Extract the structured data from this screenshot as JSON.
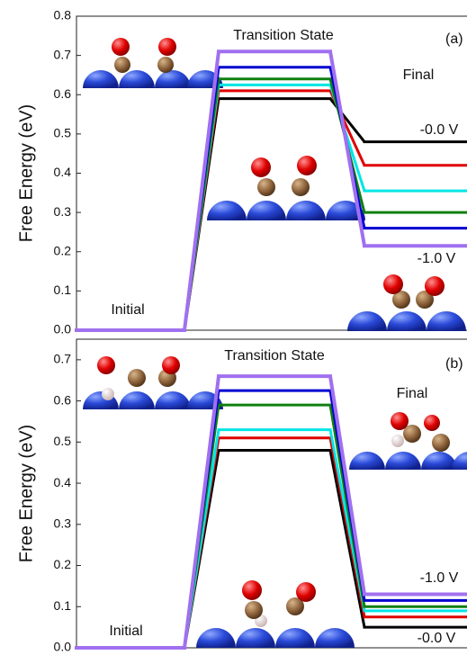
{
  "chart_data": [
    {
      "type": "line",
      "panel_label": "(a)",
      "y_label": "Free Energy (eV)",
      "categories": [
        "Initial",
        "Transition State",
        "Final"
      ],
      "ylim": [
        0,
        0.8
      ],
      "yticks": [
        {
          "value": 0,
          "label": "0.0"
        },
        0.1,
        0.2,
        0.3,
        0.4,
        0.5,
        0.6,
        0.7,
        0.8
      ],
      "series": [
        {
          "color": "#000000",
          "values": [
            0,
            0.59,
            0.48
          ]
        },
        {
          "color": "#e00000",
          "values": [
            0,
            0.61,
            0.42
          ]
        },
        {
          "color": "#00e5e5",
          "values": [
            0,
            0.625,
            0.355
          ]
        },
        {
          "color": "#108010",
          "values": [
            0,
            0.64,
            0.3
          ]
        },
        {
          "color": "#0000d0",
          "values": [
            0,
            0.67,
            0.26
          ]
        },
        {
          "color": "#a070f0",
          "values": [
            0,
            0.71,
            0.215
          ]
        }
      ],
      "annotations": [
        "-0.0 V",
        "-1.0 V"
      ]
    },
    {
      "type": "line",
      "panel_label": "(b)",
      "y_label": "Free Energy (eV)",
      "categories": [
        "Initial",
        "Transition State",
        "Final"
      ],
      "ylim": [
        0,
        0.75
      ],
      "yticks": [
        {
          "value": 0,
          "label": "0.0"
        },
        0.1,
        0.2,
        0.3,
        0.4,
        0.5,
        0.6,
        0.7
      ],
      "series": [
        {
          "color": "#000000",
          "values": [
            0,
            0.48,
            0.05
          ]
        },
        {
          "color": "#e00000",
          "values": [
            0,
            0.51,
            0.075
          ]
        },
        {
          "color": "#00e5e5",
          "values": [
            0,
            0.53,
            0.09
          ]
        },
        {
          "color": "#108010",
          "values": [
            0,
            0.59,
            0.1
          ]
        },
        {
          "color": "#0000d0",
          "values": [
            0,
            0.625,
            0.115
          ]
        },
        {
          "color": "#a070f0",
          "values": [
            0,
            0.66,
            0.13
          ]
        }
      ],
      "annotations": [
        "-1.0 V",
        "-0.0 V"
      ]
    }
  ]
}
